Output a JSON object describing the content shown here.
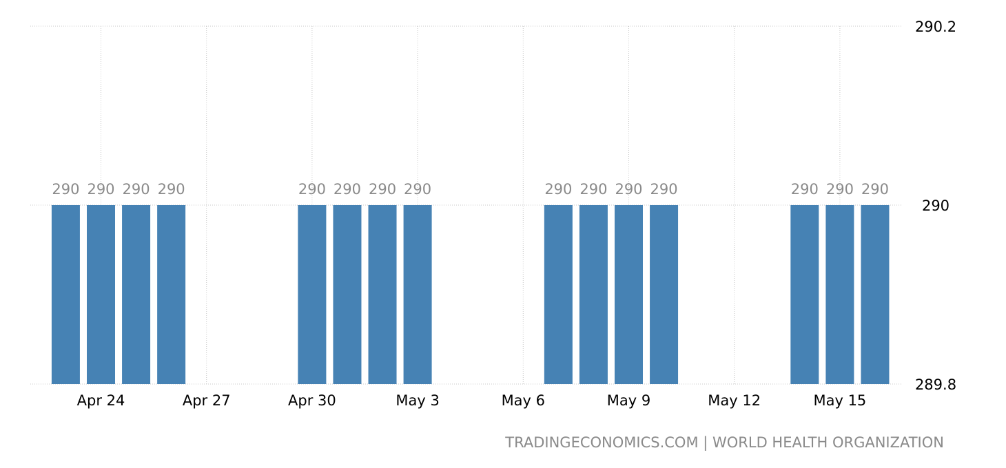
{
  "chart_data": {
    "type": "bar",
    "x": [
      "Apr 23",
      "Apr 24",
      "Apr 25",
      "Apr 26",
      "Apr 30",
      "May 1",
      "May 2",
      "May 3",
      "May 7",
      "May 8",
      "May 9",
      "May 10",
      "May 14",
      "May 15",
      "May 16"
    ],
    "values": [
      290,
      290,
      290,
      290,
      290,
      290,
      290,
      290,
      290,
      290,
      290,
      290,
      290,
      290,
      290
    ],
    "data_labels": [
      "290",
      "290",
      "290",
      "290",
      "290",
      "290",
      "290",
      "290",
      "290",
      "290",
      "290",
      "290",
      "290",
      "290",
      "290"
    ],
    "ylim": [
      289.8,
      290.2
    ],
    "y_ticks": [
      "289.8",
      "290",
      "290.2"
    ],
    "y_tick_values": [
      289.8,
      290,
      290.2
    ],
    "y_axis_side": "right",
    "x_ticks": [
      "Apr 24",
      "Apr 27",
      "Apr 30",
      "May 3",
      "May 6",
      "May 9",
      "May 12",
      "May 15"
    ],
    "x_range": [
      "Apr 22",
      "May 17"
    ],
    "grid": true,
    "bar_color": "#4682b4",
    "source_text": "TRADINGECONOMICS.COM | WORLD HEALTH ORGANIZATION"
  }
}
